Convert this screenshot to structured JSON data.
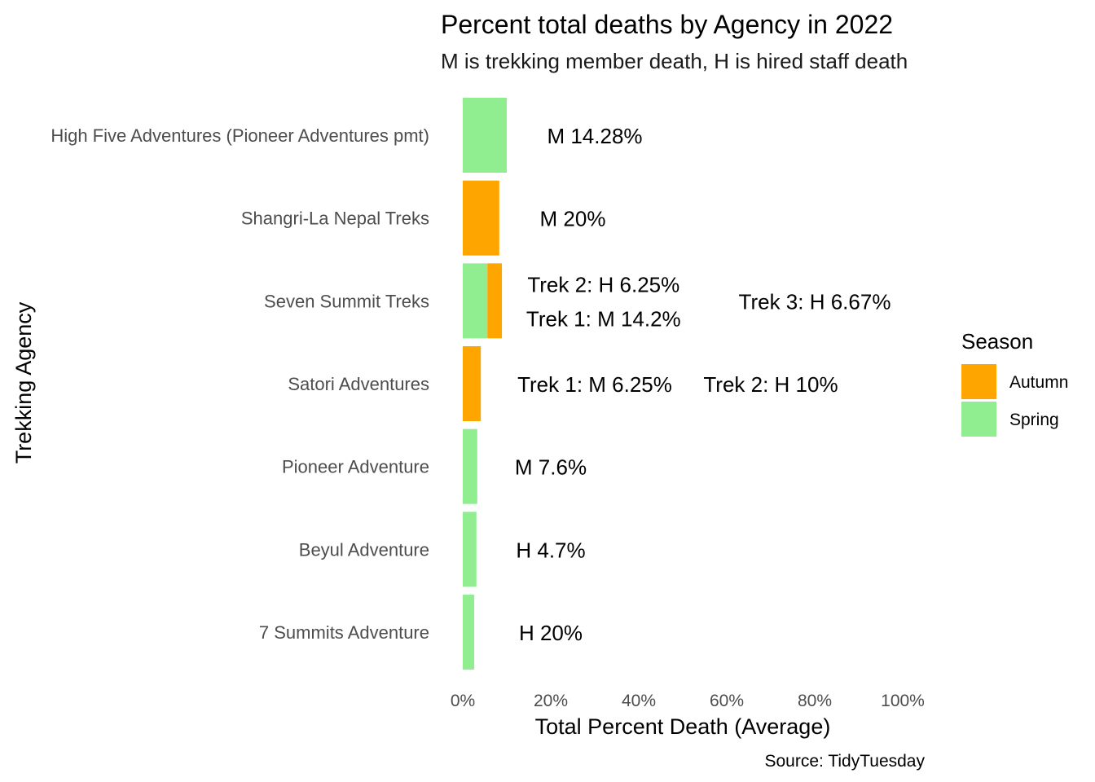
{
  "chart_data": {
    "type": "bar",
    "orientation": "horizontal",
    "stacked": true,
    "title": "Percent total deaths by Agency in 2022",
    "subtitle": "M is trekking member death, H is hired staff death",
    "xlabel": "Total Percent Death (Average)",
    "ylabel": "Trekking Agency",
    "caption": "Source: TidyTuesday",
    "xlim": [
      0,
      1
    ],
    "x_ticks": [
      "0%",
      "20%",
      "40%",
      "60%",
      "80%",
      "100%"
    ],
    "x_tick_values": [
      0,
      0.2,
      0.4,
      0.6,
      0.8,
      1.0
    ],
    "grid": false,
    "legend": {
      "title": "Season",
      "position": "right",
      "entries": [
        {
          "name": "Autumn",
          "color": "#FFA500"
        },
        {
          "name": "Spring",
          "color": "#90EE90"
        }
      ]
    },
    "categories": [
      "High Five Adventures (Pioneer Adventures pmt)",
      "Shangri-La Nepal Treks",
      "Seven Summit Treks",
      "Satori Adventures",
      "Pioneer Adventure",
      "Beyul Adventure",
      "7 Summits Adventure"
    ],
    "bars": [
      {
        "category": "High Five Adventures (Pioneer Adventures pmt)",
        "segments": [
          {
            "season": "Spring",
            "value": 0.1
          }
        ]
      },
      {
        "category": "Shangri-La Nepal Treks",
        "segments": [
          {
            "season": "Autumn",
            "value": 0.083
          }
        ]
      },
      {
        "category": "Seven Summit Treks",
        "segments": [
          {
            "season": "Spring",
            "value": 0.056
          },
          {
            "season": "Autumn",
            "value": 0.033
          }
        ]
      },
      {
        "category": "Satori Adventures",
        "segments": [
          {
            "season": "Autumn",
            "value": 0.041
          }
        ]
      },
      {
        "category": "Pioneer Adventure",
        "segments": [
          {
            "season": "Spring",
            "value": 0.033
          }
        ]
      },
      {
        "category": "Beyul Adventure",
        "segments": [
          {
            "season": "Spring",
            "value": 0.031
          }
        ]
      },
      {
        "category": "7 Summits Adventure",
        "segments": [
          {
            "season": "Spring",
            "value": 0.026
          }
        ]
      }
    ],
    "annotations": [
      {
        "category": "High Five Adventures (Pioneer Adventures pmt)",
        "x": 0.3,
        "offset": 0,
        "text": "M 14.28%"
      },
      {
        "category": "Shangri-La Nepal Treks",
        "x": 0.25,
        "offset": 0,
        "text": "M 20%"
      },
      {
        "category": "Seven Summit Treks",
        "x": 0.32,
        "offset": -1,
        "text": "Trek 2: H 6.25%"
      },
      {
        "category": "Seven Summit Treks",
        "x": 0.32,
        "offset": 1,
        "text": "Trek 1: M 14.2%"
      },
      {
        "category": "Seven Summit Treks",
        "x": 0.8,
        "offset": 0,
        "text": "Trek 3: H 6.67%"
      },
      {
        "category": "Satori Adventures",
        "x": 0.3,
        "offset": 0,
        "text": "Trek 1: M 6.25%"
      },
      {
        "category": "Satori Adventures",
        "x": 0.7,
        "offset": 0,
        "text": "Trek 2: H 10%"
      },
      {
        "category": "Pioneer Adventure",
        "x": 0.2,
        "offset": 0,
        "text": "M 7.6%"
      },
      {
        "category": "Beyul Adventure",
        "x": 0.2,
        "offset": 0,
        "text": "H 4.7%"
      },
      {
        "category": "7 Summits Adventure",
        "x": 0.2,
        "offset": 0,
        "text": "H 20%"
      }
    ]
  }
}
